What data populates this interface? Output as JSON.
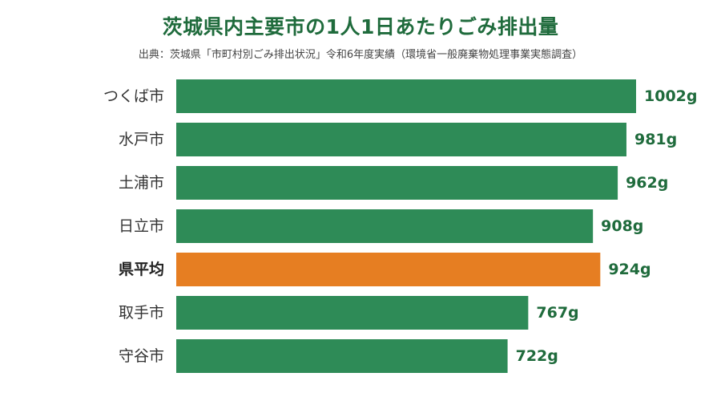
{
  "title": "茨城県内主要市の1人1日あたりごみ排出量",
  "subtitle": "出典：茨城県「市町村別ごみ排出状況」令和6年度実績（環境省一般廃棄物処理事業実態調査）",
  "colors": {
    "bar": "#2e8b57",
    "highlight_bar": "#e67e22",
    "value_label": "#1f6b3c",
    "highlight_value_label": "#1f6b3c",
    "title": "#1f6b3c"
  },
  "chart_data": {
    "type": "bar",
    "orientation": "horizontal",
    "title": "茨城県内主要市の1人1日あたりごみ排出量",
    "subtitle": "出典：茨城県「市町村別ごみ排出状況」令和6年度実績（環境省一般廃棄物処理事業実態調査）",
    "categories": [
      "つくば市",
      "水戸市",
      "土浦市",
      "日立市",
      "県平均",
      "取手市",
      "守谷市"
    ],
    "values": [
      1002,
      981,
      962,
      908,
      924,
      767,
      722
    ],
    "value_labels": [
      "1002g",
      "981g",
      "962g",
      "908g",
      "924g",
      "767g",
      "722g"
    ],
    "unit": "g",
    "highlight_category": "県平均",
    "xlabel": "",
    "ylabel": "",
    "xlim": [
      0,
      1002
    ],
    "grid": false,
    "legend": "none"
  }
}
